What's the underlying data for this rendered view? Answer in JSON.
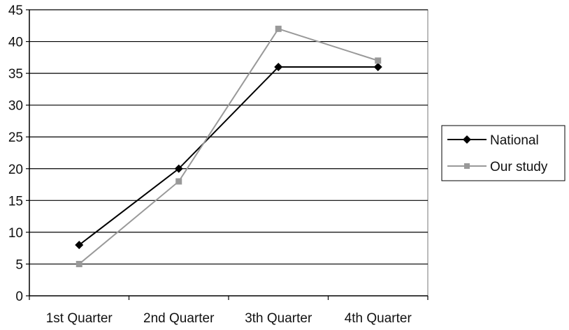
{
  "chart_data": {
    "type": "line",
    "categories": [
      "1st Quarter",
      "2nd Quarter",
      "3th Quarter",
      "4th Quarter"
    ],
    "series": [
      {
        "name": "National",
        "values": [
          8,
          20,
          36,
          36
        ],
        "color": "#000000",
        "marker": "diamond"
      },
      {
        "name": "Our study",
        "values": [
          5,
          18,
          42,
          37
        ],
        "color": "#999999",
        "marker": "square"
      }
    ],
    "ylim": [
      0,
      45
    ],
    "yticks": [
      "0",
      "5",
      "10",
      "15",
      "20",
      "25",
      "30",
      "35",
      "40",
      "45"
    ],
    "grid": true,
    "legend_position": "right"
  }
}
